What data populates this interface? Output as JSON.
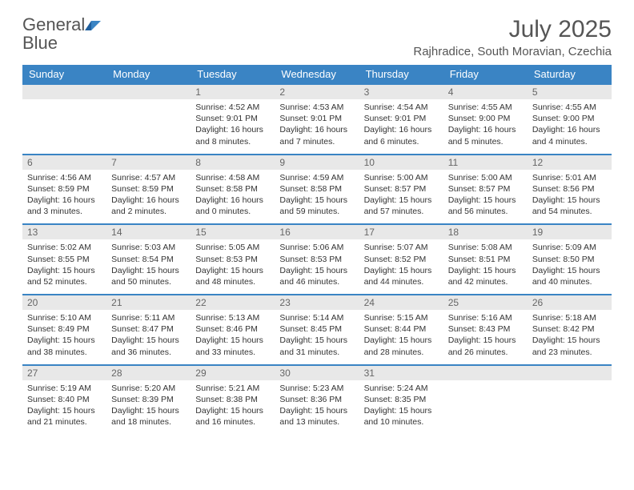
{
  "brand": {
    "name_part1": "General",
    "name_part2": "Blue"
  },
  "title": "July 2025",
  "location": "Rajhradice, South Moravian, Czechia",
  "colors": {
    "header_bg": "#3a84c4",
    "header_text": "#ffffff",
    "daynum_bg": "#e8e8e8",
    "page_bg": "#ffffff",
    "text": "#333333"
  },
  "weekdays": [
    "Sunday",
    "Monday",
    "Tuesday",
    "Wednesday",
    "Thursday",
    "Friday",
    "Saturday"
  ],
  "weeks": [
    [
      null,
      null,
      {
        "n": "1",
        "sr": "Sunrise: 4:52 AM",
        "ss": "Sunset: 9:01 PM",
        "dl1": "Daylight: 16 hours",
        "dl2": "and 8 minutes."
      },
      {
        "n": "2",
        "sr": "Sunrise: 4:53 AM",
        "ss": "Sunset: 9:01 PM",
        "dl1": "Daylight: 16 hours",
        "dl2": "and 7 minutes."
      },
      {
        "n": "3",
        "sr": "Sunrise: 4:54 AM",
        "ss": "Sunset: 9:01 PM",
        "dl1": "Daylight: 16 hours",
        "dl2": "and 6 minutes."
      },
      {
        "n": "4",
        "sr": "Sunrise: 4:55 AM",
        "ss": "Sunset: 9:00 PM",
        "dl1": "Daylight: 16 hours",
        "dl2": "and 5 minutes."
      },
      {
        "n": "5",
        "sr": "Sunrise: 4:55 AM",
        "ss": "Sunset: 9:00 PM",
        "dl1": "Daylight: 16 hours",
        "dl2": "and 4 minutes."
      }
    ],
    [
      {
        "n": "6",
        "sr": "Sunrise: 4:56 AM",
        "ss": "Sunset: 8:59 PM",
        "dl1": "Daylight: 16 hours",
        "dl2": "and 3 minutes."
      },
      {
        "n": "7",
        "sr": "Sunrise: 4:57 AM",
        "ss": "Sunset: 8:59 PM",
        "dl1": "Daylight: 16 hours",
        "dl2": "and 2 minutes."
      },
      {
        "n": "8",
        "sr": "Sunrise: 4:58 AM",
        "ss": "Sunset: 8:58 PM",
        "dl1": "Daylight: 16 hours",
        "dl2": "and 0 minutes."
      },
      {
        "n": "9",
        "sr": "Sunrise: 4:59 AM",
        "ss": "Sunset: 8:58 PM",
        "dl1": "Daylight: 15 hours",
        "dl2": "and 59 minutes."
      },
      {
        "n": "10",
        "sr": "Sunrise: 5:00 AM",
        "ss": "Sunset: 8:57 PM",
        "dl1": "Daylight: 15 hours",
        "dl2": "and 57 minutes."
      },
      {
        "n": "11",
        "sr": "Sunrise: 5:00 AM",
        "ss": "Sunset: 8:57 PM",
        "dl1": "Daylight: 15 hours",
        "dl2": "and 56 minutes."
      },
      {
        "n": "12",
        "sr": "Sunrise: 5:01 AM",
        "ss": "Sunset: 8:56 PM",
        "dl1": "Daylight: 15 hours",
        "dl2": "and 54 minutes."
      }
    ],
    [
      {
        "n": "13",
        "sr": "Sunrise: 5:02 AM",
        "ss": "Sunset: 8:55 PM",
        "dl1": "Daylight: 15 hours",
        "dl2": "and 52 minutes."
      },
      {
        "n": "14",
        "sr": "Sunrise: 5:03 AM",
        "ss": "Sunset: 8:54 PM",
        "dl1": "Daylight: 15 hours",
        "dl2": "and 50 minutes."
      },
      {
        "n": "15",
        "sr": "Sunrise: 5:05 AM",
        "ss": "Sunset: 8:53 PM",
        "dl1": "Daylight: 15 hours",
        "dl2": "and 48 minutes."
      },
      {
        "n": "16",
        "sr": "Sunrise: 5:06 AM",
        "ss": "Sunset: 8:53 PM",
        "dl1": "Daylight: 15 hours",
        "dl2": "and 46 minutes."
      },
      {
        "n": "17",
        "sr": "Sunrise: 5:07 AM",
        "ss": "Sunset: 8:52 PM",
        "dl1": "Daylight: 15 hours",
        "dl2": "and 44 minutes."
      },
      {
        "n": "18",
        "sr": "Sunrise: 5:08 AM",
        "ss": "Sunset: 8:51 PM",
        "dl1": "Daylight: 15 hours",
        "dl2": "and 42 minutes."
      },
      {
        "n": "19",
        "sr": "Sunrise: 5:09 AM",
        "ss": "Sunset: 8:50 PM",
        "dl1": "Daylight: 15 hours",
        "dl2": "and 40 minutes."
      }
    ],
    [
      {
        "n": "20",
        "sr": "Sunrise: 5:10 AM",
        "ss": "Sunset: 8:49 PM",
        "dl1": "Daylight: 15 hours",
        "dl2": "and 38 minutes."
      },
      {
        "n": "21",
        "sr": "Sunrise: 5:11 AM",
        "ss": "Sunset: 8:47 PM",
        "dl1": "Daylight: 15 hours",
        "dl2": "and 36 minutes."
      },
      {
        "n": "22",
        "sr": "Sunrise: 5:13 AM",
        "ss": "Sunset: 8:46 PM",
        "dl1": "Daylight: 15 hours",
        "dl2": "and 33 minutes."
      },
      {
        "n": "23",
        "sr": "Sunrise: 5:14 AM",
        "ss": "Sunset: 8:45 PM",
        "dl1": "Daylight: 15 hours",
        "dl2": "and 31 minutes."
      },
      {
        "n": "24",
        "sr": "Sunrise: 5:15 AM",
        "ss": "Sunset: 8:44 PM",
        "dl1": "Daylight: 15 hours",
        "dl2": "and 28 minutes."
      },
      {
        "n": "25",
        "sr": "Sunrise: 5:16 AM",
        "ss": "Sunset: 8:43 PM",
        "dl1": "Daylight: 15 hours",
        "dl2": "and 26 minutes."
      },
      {
        "n": "26",
        "sr": "Sunrise: 5:18 AM",
        "ss": "Sunset: 8:42 PM",
        "dl1": "Daylight: 15 hours",
        "dl2": "and 23 minutes."
      }
    ],
    [
      {
        "n": "27",
        "sr": "Sunrise: 5:19 AM",
        "ss": "Sunset: 8:40 PM",
        "dl1": "Daylight: 15 hours",
        "dl2": "and 21 minutes."
      },
      {
        "n": "28",
        "sr": "Sunrise: 5:20 AM",
        "ss": "Sunset: 8:39 PM",
        "dl1": "Daylight: 15 hours",
        "dl2": "and 18 minutes."
      },
      {
        "n": "29",
        "sr": "Sunrise: 5:21 AM",
        "ss": "Sunset: 8:38 PM",
        "dl1": "Daylight: 15 hours",
        "dl2": "and 16 minutes."
      },
      {
        "n": "30",
        "sr": "Sunrise: 5:23 AM",
        "ss": "Sunset: 8:36 PM",
        "dl1": "Daylight: 15 hours",
        "dl2": "and 13 minutes."
      },
      {
        "n": "31",
        "sr": "Sunrise: 5:24 AM",
        "ss": "Sunset: 8:35 PM",
        "dl1": "Daylight: 15 hours",
        "dl2": "and 10 minutes."
      },
      null,
      null
    ]
  ]
}
